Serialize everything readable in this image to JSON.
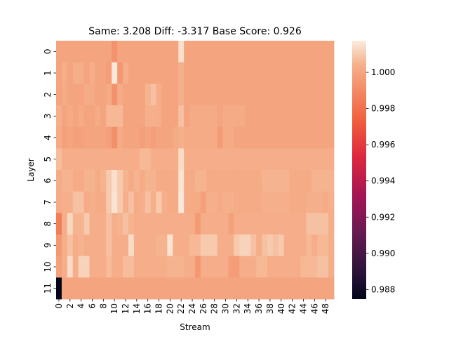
{
  "chart_data": {
    "type": "heatmap",
    "title": "Same: 3.208 Diff: -3.317 Base Score: 0.926",
    "xlabel": "Stream",
    "ylabel": "Layer",
    "x_tick_labels": [
      "0",
      "2",
      "4",
      "6",
      "8",
      "10",
      "12",
      "14",
      "16",
      "18",
      "20",
      "22",
      "24",
      "26",
      "28",
      "30",
      "32",
      "34",
      "36",
      "38",
      "40",
      "42",
      "44",
      "46",
      "48"
    ],
    "y_tick_labels": [
      "0",
      "1",
      "2",
      "3",
      "4",
      "5",
      "6",
      "7",
      "8",
      "9",
      "10",
      "11"
    ],
    "n_streams": 50,
    "n_layers": 12,
    "colorbar": {
      "range": [
        0.98747,
        1.00175
      ],
      "ticks": [
        "0.988",
        "0.990",
        "0.992",
        "0.994",
        "0.996",
        "0.998",
        "1.000"
      ],
      "tick_values": [
        0.988,
        0.99,
        0.992,
        0.994,
        0.996,
        0.998,
        1.0
      ]
    },
    "base_value": 0.99995,
    "values": [
      [
        0.99995,
        0.99995,
        0.99995,
        0.99995,
        0.99995,
        0.99995,
        0.99995,
        0.99995,
        0.99995,
        0.99995,
        0.9993,
        0.99995,
        0.99995,
        0.99995,
        0.99995,
        0.99995,
        0.99995,
        0.99995,
        0.99995,
        0.99995,
        0.99995,
        0.99995,
        1.0015,
        0.99995,
        0.99995,
        0.99995,
        0.99995,
        0.99995,
        0.99995,
        0.99995,
        0.99995,
        0.99995,
        0.99995,
        0.99995,
        0.99995,
        0.99995,
        0.99995,
        0.99995,
        0.99995,
        0.99995,
        0.99995,
        0.99995,
        0.99995,
        0.99995,
        0.99995,
        0.99995,
        0.99995,
        0.99995,
        0.99995,
        0.99995
      ],
      [
        0.99995,
        1.0003,
        0.99995,
        1.0003,
        1.0003,
        0.99995,
        1.0003,
        0.99995,
        0.99995,
        0.9997,
        1.0017,
        0.9995,
        1.0003,
        0.99995,
        0.99995,
        0.99995,
        0.99995,
        0.99995,
        0.99995,
        0.99995,
        0.99995,
        0.99995,
        1.0004,
        0.99995,
        0.99995,
        0.99995,
        0.99995,
        0.99995,
        0.99995,
        0.99995,
        0.99995,
        0.99995,
        0.99995,
        0.99995,
        0.99995,
        0.99995,
        0.99995,
        0.99995,
        0.99995,
        0.99995,
        0.99995,
        0.99995,
        0.99995,
        0.99995,
        0.99995,
        0.99995,
        0.99995,
        0.99995,
        0.99995,
        0.99995
      ],
      [
        0.99995,
        1.0002,
        0.99995,
        0.99995,
        0.99995,
        1.0002,
        1.0002,
        0.99995,
        0.99995,
        1.0002,
        0.9993,
        1.0002,
        0.99995,
        0.99995,
        0.99995,
        0.99995,
        1.0005,
        1.0008,
        1.0003,
        0.99995,
        0.99995,
        0.99995,
        1.0004,
        0.99995,
        0.99995,
        0.99995,
        0.99995,
        0.99995,
        0.99995,
        0.99995,
        0.99995,
        0.99995,
        0.99995,
        0.99995,
        0.99995,
        0.99995,
        0.99995,
        0.99995,
        0.99995,
        0.99995,
        0.99995,
        0.99995,
        0.99995,
        0.99995,
        0.99995,
        0.99995,
        0.99995,
        0.99995,
        0.99995,
        0.99995
      ],
      [
        1.0004,
        0.99995,
        1.0002,
        0.99995,
        1.0002,
        0.99995,
        0.99995,
        1.0002,
        0.99995,
        1.0006,
        1.0006,
        1.0006,
        0.99995,
        0.99995,
        0.99995,
        0.99995,
        1.0004,
        1.0004,
        1.0003,
        0.99995,
        0.99995,
        0.99995,
        1.0008,
        0.99995,
        1.0002,
        1.0002,
        1.0002,
        1.0002,
        1.0002,
        0.99995,
        1.0002,
        1.0002,
        1.0002,
        1.0002,
        0.99995,
        0.99995,
        0.99995,
        0.99995,
        0.99995,
        0.99995,
        0.99995,
        0.99995,
        0.99995,
        0.99995,
        0.99995,
        0.99995,
        0.99995,
        0.99995,
        0.99995,
        0.99995
      ],
      [
        1.0002,
        0.9998,
        0.99995,
        0.9998,
        0.9998,
        0.99995,
        0.99995,
        0.99995,
        0.99995,
        0.9998,
        0.9992,
        1.0002,
        0.99995,
        0.99995,
        0.99995,
        0.99975,
        0.99995,
        0.99975,
        0.99995,
        0.99995,
        0.99995,
        1.0002,
        1.0004,
        1.0002,
        1.0002,
        1.0002,
        1.0002,
        1.0002,
        1.0002,
        0.9996,
        1.0002,
        1.0002,
        0.99995,
        0.99995,
        0.99995,
        0.99995,
        0.99995,
        0.99995,
        0.99995,
        0.99995,
        0.99995,
        0.99995,
        0.99995,
        0.99995,
        0.99995,
        0.99995,
        0.99995,
        0.99995,
        0.99995,
        0.99995
      ],
      [
        1.0007,
        1.0003,
        1.0003,
        1.0003,
        1.0003,
        1.0003,
        1.0003,
        1.0003,
        1.0003,
        1.0003,
        1.0003,
        1.0003,
        1.0003,
        1.0003,
        1.0003,
        1.0006,
        1.0006,
        1.0003,
        1.0003,
        1.0003,
        1.0003,
        1.0003,
        1.0014,
        1.0003,
        1.0003,
        1.0003,
        1.0003,
        1.0003,
        1.0003,
        1.0003,
        1.0003,
        1.0003,
        1.0003,
        1.0003,
        1.0003,
        1.0003,
        1.0003,
        1.0003,
        1.0003,
        1.0003,
        1.0003,
        1.0003,
        1.0003,
        1.0003,
        1.0003,
        1.0003,
        1.0003,
        1.0003,
        1.0003,
        1.0003
      ],
      [
        1.0002,
        1.0005,
        1.0005,
        1.0002,
        1.0002,
        1.0005,
        1.0005,
        1.0002,
        1.0005,
        1.001,
        1.0015,
        1.001,
        1.0005,
        1.0002,
        1.0005,
        1.0002,
        1.0005,
        1.0005,
        1.0002,
        1.0002,
        1.0002,
        1.0002,
        1.0016,
        1.0002,
        1.0002,
        1.0005,
        1.0005,
        1.0002,
        1.0002,
        1.0002,
        1.0002,
        1.0002,
        1.0002,
        1.0002,
        1.0002,
        1.0002,
        1.0002,
        1.0005,
        1.0005,
        1.0005,
        1.0005,
        1.0005,
        1.0002,
        1.0002,
        1.0002,
        1.0002,
        1.0005,
        1.0005,
        1.0005,
        1.0005
      ],
      [
        1.0002,
        1.0004,
        1.0004,
        1.0008,
        1.0008,
        1.0002,
        1.0004,
        1.0002,
        1.0002,
        1.001,
        1.0016,
        1.001,
        1.0004,
        1.0008,
        1.0002,
        1.0004,
        1.0008,
        1.0004,
        1.001,
        1.0004,
        1.0002,
        1.0002,
        1.0017,
        1.0002,
        1.0002,
        1.0002,
        0.9998,
        1.0004,
        1.0004,
        1.0002,
        1.0004,
        1.0004,
        1.0002,
        1.0002,
        1.0002,
        1.0002,
        1.0002,
        1.0004,
        1.0004,
        1.0004,
        1.0004,
        1.0004,
        1.0002,
        1.0002,
        1.0002,
        1.0004,
        1.0004,
        1.0004,
        1.0002,
        1.0004
      ],
      [
        0.9985,
        1.0003,
        1.0013,
        1.0005,
        1.0005,
        1.001,
        1.0003,
        1.0003,
        1.0003,
        1.0008,
        1.0003,
        1.0005,
        1.0008,
        1.0005,
        1.0003,
        1.0003,
        1.0003,
        1.0003,
        1.0003,
        1.0003,
        1.0003,
        1.0003,
        1.0003,
        1.0003,
        1.0003,
        0.9996,
        1.0003,
        1.0003,
        1.0003,
        1.0003,
        1.0003,
        0.9998,
        1.0003,
        1.0003,
        1.0003,
        1.0003,
        1.0003,
        1.0003,
        1.0003,
        1.0003,
        1.0003,
        1.0003,
        1.0003,
        1.0003,
        1.0003,
        1.0008,
        1.0008,
        1.0008,
        1.0008,
        1.0003
      ],
      [
        0.9995,
        1.0003,
        1.0008,
        1.0003,
        1.0005,
        1.0003,
        1.0003,
        1.0003,
        1.0003,
        1.0008,
        1.0003,
        1.0003,
        1.0003,
        1.0014,
        1.0003,
        1.0003,
        1.0003,
        1.0003,
        1.0005,
        1.0005,
        1.0016,
        1.0003,
        1.0003,
        1.0003,
        1.0006,
        1.0006,
        1.001,
        1.001,
        1.001,
        1.0003,
        1.0003,
        1.0003,
        1.001,
        1.0012,
        1.0012,
        1.0008,
        1.0003,
        1.0008,
        1.001,
        1.0008,
        1.001,
        1.0003,
        1.0003,
        1.0003,
        1.0003,
        1.0006,
        1.0003,
        1.0006,
        1.0006,
        1.0003
      ],
      [
        0.9998,
        1.0003,
        1.0014,
        1.0003,
        1.0012,
        1.0012,
        1.0003,
        1.0003,
        1.0003,
        1.0007,
        1.0003,
        1.0003,
        1.0007,
        1.0007,
        1.0003,
        1.0003,
        1.0003,
        1.0003,
        1.0003,
        1.0003,
        1.0005,
        1.0005,
        1.0005,
        1.0003,
        1.0003,
        0.9995,
        1.0003,
        1.0003,
        1.0003,
        1.0003,
        1.0003,
        0.9997,
        0.9997,
        1.0003,
        1.0003,
        1.0003,
        1.0006,
        1.0006,
        1.0003,
        1.0003,
        1.0003,
        1.0003,
        1.0003,
        1.0003,
        1.0006,
        1.0006,
        1.0006,
        1.0008,
        1.0008,
        1.0003
      ],
      [
        0.98747,
        0.99995,
        0.99995,
        0.99995,
        0.99995,
        0.99995,
        0.99995,
        0.99995,
        0.99995,
        0.99995,
        0.99995,
        0.99995,
        0.99995,
        0.99995,
        0.99995,
        0.99995,
        0.99995,
        0.99995,
        0.99995,
        0.99995,
        0.99995,
        0.99995,
        0.99995,
        0.99995,
        0.99995,
        0.99995,
        0.99995,
        0.99995,
        0.99995,
        0.99995,
        0.99995,
        0.99995,
        0.99995,
        0.99995,
        0.99995,
        0.99995,
        0.99995,
        0.99995,
        0.99995,
        0.99995,
        0.99995,
        0.99995,
        0.99995,
        0.99995,
        0.99995,
        0.99995,
        0.99995,
        0.99995,
        0.99995,
        0.99995
      ]
    ]
  }
}
